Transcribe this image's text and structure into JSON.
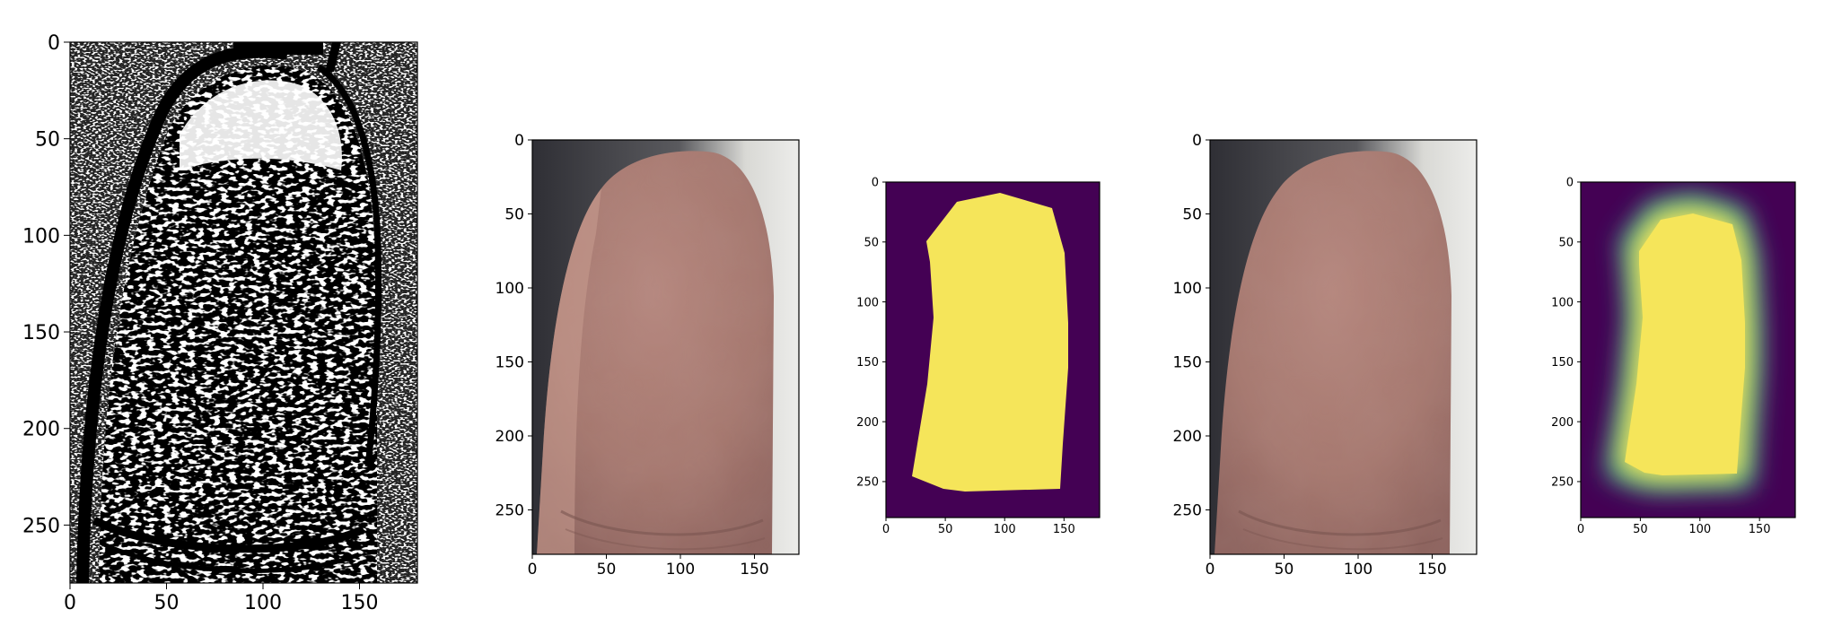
{
  "panels": [
    {
      "name": "binary-ridge-map",
      "kind": "binary",
      "x_ticks": [
        "0",
        "50",
        "100",
        "150"
      ],
      "y_ticks": [
        "0",
        "50",
        "100",
        "150",
        "200",
        "250"
      ],
      "x_range": [
        0,
        180
      ],
      "y_range": [
        0,
        280
      ]
    },
    {
      "name": "finger-photo-1",
      "kind": "photo",
      "x_ticks": [
        "0",
        "50",
        "100",
        "150"
      ],
      "y_ticks": [
        "0",
        "50",
        "100",
        "150",
        "200",
        "250"
      ],
      "x_range": [
        0,
        180
      ],
      "y_range": [
        0,
        280
      ]
    },
    {
      "name": "finger-mask",
      "kind": "mask",
      "x_ticks": [
        "0",
        "50",
        "100",
        "150"
      ],
      "y_ticks": [
        "0",
        "50",
        "100",
        "150",
        "200",
        "250"
      ],
      "x_range": [
        0,
        180
      ],
      "y_range": [
        0,
        280
      ]
    },
    {
      "name": "finger-photo-2",
      "kind": "photo",
      "x_ticks": [
        "0",
        "50",
        "100",
        "150"
      ],
      "y_ticks": [
        "0",
        "50",
        "100",
        "150",
        "200",
        "250"
      ],
      "x_range": [
        0,
        180
      ],
      "y_range": [
        0,
        280
      ]
    },
    {
      "name": "finger-mask-blurred",
      "kind": "mask-blur",
      "x_ticks": [
        "0",
        "50",
        "100",
        "150"
      ],
      "y_ticks": [
        "0",
        "50",
        "100",
        "150",
        "200",
        "250"
      ],
      "x_range": [
        0,
        180
      ],
      "y_range": [
        0,
        280
      ]
    }
  ],
  "colors": {
    "mask_background": "#440154",
    "mask_foreground": "#f5e55a",
    "mask_edge_teal": "#2a9a8a",
    "skin_base": "#b08478",
    "skin_dark": "#8f6560",
    "photo_background_dark": "#3b3b40",
    "photo_background_light": "#e4e4e0",
    "binary_black": "#000000",
    "binary_white": "#ffffff"
  }
}
